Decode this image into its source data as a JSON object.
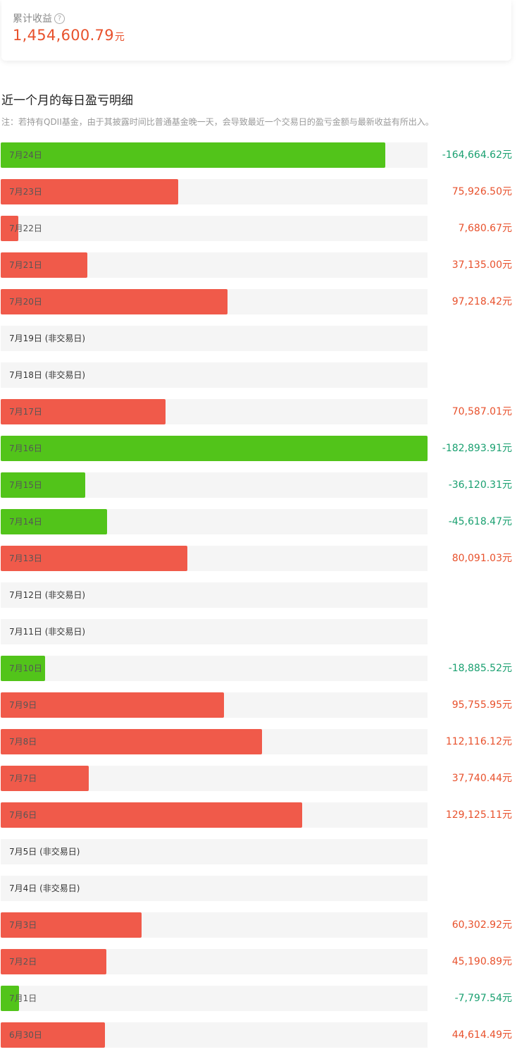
{
  "summary": {
    "label": "累计收益",
    "value": "1,454,600.79",
    "unit": "元",
    "help_glyph": "?"
  },
  "section": {
    "title": "近一个月的每日盈亏明细",
    "note": "注：若持有QDII基金，由于其披露时间比普通基金晚一天，会导致最近一个交易日的盈亏金额与最新收益有所出入。"
  },
  "colors": {
    "gain": "#f05a4a",
    "loss": "#52c41a",
    "gain_text": "#e8512c",
    "loss_text": "#1aa070",
    "track": "#f5f5f5"
  },
  "unit": "元",
  "rows": [
    {
      "date": "7月24日",
      "amount": "-164,664.62",
      "value": -164664.62
    },
    {
      "date": "7月23日",
      "amount": "75,926.50",
      "value": 75926.5
    },
    {
      "date": "7月22日",
      "amount": "7,680.67",
      "value": 7680.67
    },
    {
      "date": "7月21日",
      "amount": "37,135.00",
      "value": 37135.0
    },
    {
      "date": "7月20日",
      "amount": "97,218.42",
      "value": 97218.42
    },
    {
      "date": "7月19日 (非交易日)",
      "amount": null,
      "value": null
    },
    {
      "date": "7月18日 (非交易日)",
      "amount": null,
      "value": null
    },
    {
      "date": "7月17日",
      "amount": "70,587.01",
      "value": 70587.01
    },
    {
      "date": "7月16日",
      "amount": "-182,893.91",
      "value": -182893.91
    },
    {
      "date": "7月15日",
      "amount": "-36,120.31",
      "value": -36120.31
    },
    {
      "date": "7月14日",
      "amount": "-45,618.47",
      "value": -45618.47
    },
    {
      "date": "7月13日",
      "amount": "80,091.03",
      "value": 80091.03
    },
    {
      "date": "7月12日 (非交易日)",
      "amount": null,
      "value": null
    },
    {
      "date": "7月11日 (非交易日)",
      "amount": null,
      "value": null
    },
    {
      "date": "7月10日",
      "amount": "-18,885.52",
      "value": -18885.52
    },
    {
      "date": "7月9日",
      "amount": "95,755.95",
      "value": 95755.95
    },
    {
      "date": "7月8日",
      "amount": "112,116.12",
      "value": 112116.12
    },
    {
      "date": "7月7日",
      "amount": "37,740.44",
      "value": 37740.44
    },
    {
      "date": "7月6日",
      "amount": "129,125.11",
      "value": 129125.11
    },
    {
      "date": "7月5日 (非交易日)",
      "amount": null,
      "value": null
    },
    {
      "date": "7月4日 (非交易日)",
      "amount": null,
      "value": null
    },
    {
      "date": "7月3日",
      "amount": "60,302.92",
      "value": 60302.92
    },
    {
      "date": "7月2日",
      "amount": "45,190.89",
      "value": 45190.89
    },
    {
      "date": "7月1日",
      "amount": "-7,797.54",
      "value": -7797.54
    },
    {
      "date": "6月30日",
      "amount": "44,614.49",
      "value": 44614.49
    }
  ]
}
